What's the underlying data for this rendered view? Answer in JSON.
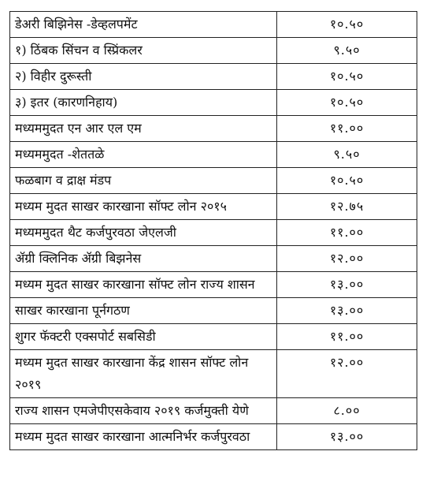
{
  "table": {
    "rows": [
      [
        "डेअरी बिझिनेस -डेव्हलपमेंट",
        "१०.५०"
      ],
      [
        "१) ठिंबक सिंचन व स्प्रिंकलर",
        "९.५०"
      ],
      [
        "२) विहीर दुरूस्ती",
        "१०.५०"
      ],
      [
        "३) इतर (कारणनिहाय)",
        "१०.५०"
      ],
      [
        "मध्यममुदत एन आर एल एम",
        "११.००"
      ],
      [
        "मध्यममुदत -शेततळे",
        "९.५०"
      ],
      [
        "फळबाग व द्राक्ष मंडप",
        "१०.५०"
      ],
      [
        "मध्यम मुदत साखर कारखाना सॉफ्ट लोन २०१५",
        "१२.७५"
      ],
      [
        "मध्यममुदत थैट कर्जपुरवठा जेएलजी",
        "११.००"
      ],
      [
        "ॲग्री क्लिनिक ॲग्री बिझनेस",
        "१२.००"
      ],
      [
        "मध्यम मुदत साखर कारखाना  सॉफ्ट लोन राज्य शासन",
        "१३.००"
      ],
      [
        "साखर कारखाना पूर्नगठण",
        "१३.००"
      ],
      [
        "शुगर फॅक्टरी एक्सपोर्ट सबसिडी",
        "११.००"
      ],
      [
        "मध्यम मुदत साखर कारखाना केंद्र शासन सॉफ्ट लोन २०१९",
        "१२.००"
      ],
      [
        "राज्य शासन एमजेपीएसकेवाय २०१९ कर्जमुक्ती येणे",
        "८.००"
      ],
      [
        "मध्यम मुदत साखर कारखाना आत्मनिर्भर कर्जपुरवठा",
        "१३.००"
      ]
    ]
  }
}
